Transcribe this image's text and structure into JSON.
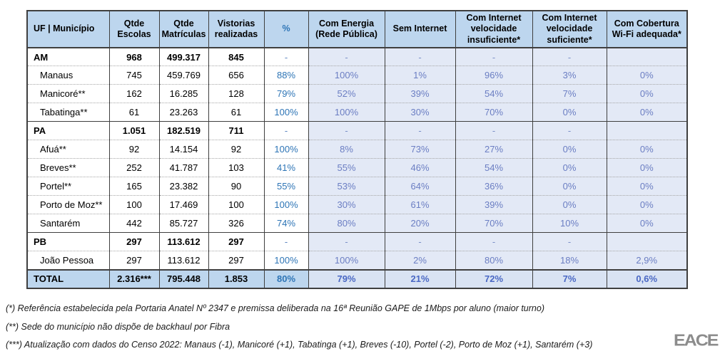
{
  "table": {
    "headers": [
      "UF | Município",
      "Qtde Escolas",
      "Qtde Matrículas",
      "Vistorias realizadas",
      "%",
      "Com Energia (Rede Pública)",
      "Sem Internet",
      "Com Internet velocidade insuficiente*",
      "Com Internet velocidade suficiente*",
      "Com Cobertura Wi-Fi adequada*"
    ],
    "rows": [
      {
        "type": "state",
        "cells": [
          "AM",
          "968",
          "499.317",
          "845",
          "-",
          "-",
          "-",
          "-",
          "-",
          ""
        ]
      },
      {
        "type": "muni",
        "cells": [
          "Manaus",
          "745",
          "459.769",
          "656",
          "88%",
          "100%",
          "1%",
          "96%",
          "3%",
          "0%"
        ]
      },
      {
        "type": "muni",
        "cells": [
          "Manicoré**",
          "162",
          "16.285",
          "128",
          "79%",
          "52%",
          "39%",
          "54%",
          "7%",
          "0%"
        ]
      },
      {
        "type": "muni",
        "cells": [
          "Tabatinga**",
          "61",
          "23.263",
          "61",
          "100%",
          "100%",
          "30%",
          "70%",
          "0%",
          "0%"
        ]
      },
      {
        "type": "state",
        "cells": [
          "PA",
          "1.051",
          "182.519",
          "711",
          "-",
          "-",
          "-",
          "-",
          "-",
          ""
        ]
      },
      {
        "type": "muni",
        "cells": [
          "Afuá**",
          "92",
          "14.154",
          "92",
          "100%",
          "8%",
          "73%",
          "27%",
          "0%",
          "0%"
        ]
      },
      {
        "type": "muni",
        "cells": [
          "Breves**",
          "252",
          "41.787",
          "103",
          "41%",
          "55%",
          "46%",
          "54%",
          "0%",
          "0%"
        ]
      },
      {
        "type": "muni",
        "cells": [
          "Portel**",
          "165",
          "23.382",
          "90",
          "55%",
          "53%",
          "64%",
          "36%",
          "0%",
          "0%"
        ]
      },
      {
        "type": "muni",
        "cells": [
          "Porto de Moz**",
          "100",
          "17.469",
          "100",
          "100%",
          "30%",
          "61%",
          "39%",
          "0%",
          "0%"
        ]
      },
      {
        "type": "muni",
        "cells": [
          "Santarém",
          "442",
          "85.727",
          "326",
          "74%",
          "80%",
          "20%",
          "70%",
          "10%",
          "0%"
        ]
      },
      {
        "type": "state",
        "cells": [
          "PB",
          "297",
          "113.612",
          "297",
          "-",
          "-",
          "-",
          "-",
          "-",
          ""
        ]
      },
      {
        "type": "muni",
        "cells": [
          "João Pessoa",
          "297",
          "113.612",
          "297",
          "100%",
          "100%",
          "2%",
          "80%",
          "18%",
          "2,9%"
        ]
      },
      {
        "type": "total",
        "cells": [
          "TOTAL",
          "2.316***",
          "795.448",
          "1.853",
          "80%",
          "79%",
          "21%",
          "72%",
          "7%",
          "0,6%"
        ]
      }
    ]
  },
  "footnotes": [
    "(*) Referência estabelecida pela Portaria Anatel Nº 2347 e premissa deliberada na 16ª Reunião GAPE de 1Mbps por aluno (maior turno)",
    "(**) Sede do município não dispõe de backhaul por Fibra",
    "(***) Atualização com dados do Censo 2022: Manaus (-1), Manicoré (+1), Tabatinga (+1), Breves (-10), Portel (-2), Porto de Moz (+1), Santarém (+3)"
  ],
  "logo": {
    "text": "EACE"
  },
  "colors": {
    "header_bg": "#BDD6EE",
    "shaded_cell_bg": "#E3E9F6",
    "total_shaded_bg": "#D9E3F3",
    "accent_blue": "#2E75B6",
    "muted_blue": "#6B7EC3",
    "border_dark": "#3f3f3f",
    "logo_gray": "#8c8c8c"
  }
}
